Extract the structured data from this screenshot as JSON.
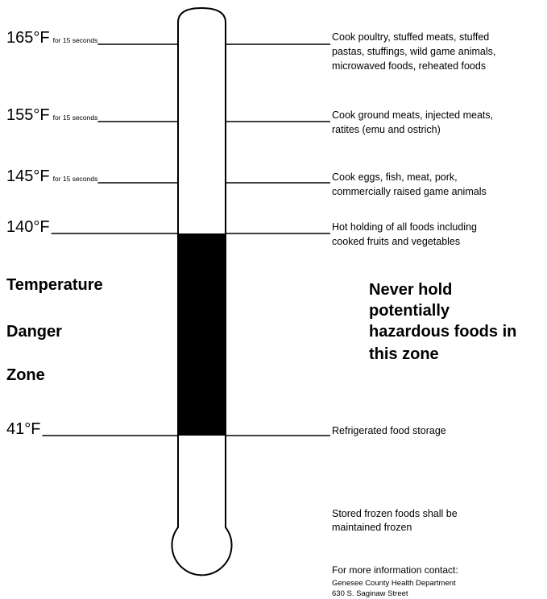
{
  "levels": [
    {
      "temp": "165°F",
      "note": "for 15 seconds",
      "description": [
        "Cook poultry, stuffed meats, stuffed",
        "pastas, stuffings, wild game animals,",
        "microwaved foods, reheated foods"
      ]
    },
    {
      "temp": "155°F",
      "note": "for 15 seconds",
      "description": [
        "Cook ground meats, injected meats,",
        "ratites (emu and ostrich)"
      ]
    },
    {
      "temp": "145°F",
      "note": "for 15 seconds",
      "description": [
        "Cook eggs, fish, meat, pork,",
        "commercially raised game animals"
      ]
    },
    {
      "temp": "140°F",
      "description": [
        "Hot holding of all foods including",
        "cooked fruits and vegetables"
      ]
    },
    {
      "temp": "41°F",
      "description": [
        "Refrigerated food storage"
      ]
    }
  ],
  "danger_zone": {
    "title": [
      "Temperature",
      "Danger",
      "Zone"
    ],
    "warning": [
      "Never hold",
      "potentially",
      "hazardous foods in",
      "this zone"
    ]
  },
  "frozen_note": [
    "Stored frozen foods shall be",
    "maintained frozen"
  ],
  "contact": {
    "heading": "For more information contact:",
    "lines": [
      "Genesee County Health Department",
      "630 S. Saginaw Street"
    ]
  }
}
